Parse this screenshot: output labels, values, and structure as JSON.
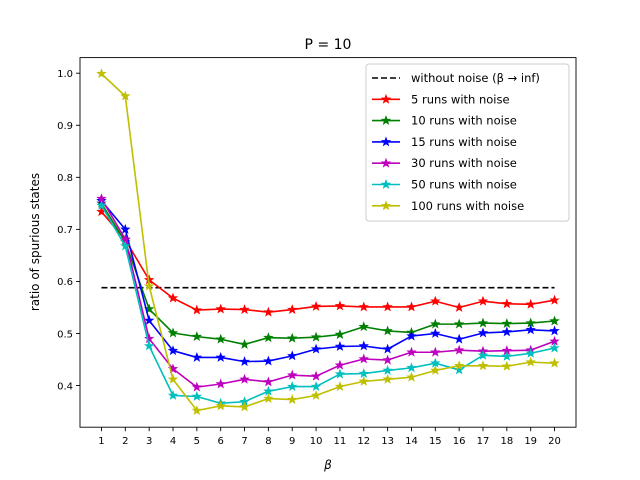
{
  "chart_data": {
    "type": "line",
    "title": "P = 10",
    "xlabel": "β",
    "ylabel": "ratio of spurious states",
    "x": [
      1,
      2,
      3,
      4,
      5,
      6,
      7,
      8,
      9,
      10,
      11,
      12,
      13,
      14,
      15,
      16,
      17,
      18,
      19,
      20
    ],
    "xlim": [
      0.1,
      20.9
    ],
    "ylim": [
      0.32,
      1.03
    ],
    "yticks": [
      "0.4",
      "0.5",
      "0.6",
      "0.7",
      "0.8",
      "0.9",
      "1.0"
    ],
    "grid": false,
    "legend_position": "upper right",
    "reference_line": {
      "name": "without noise (β → inf)",
      "y": 0.588,
      "x_range": [
        1,
        20
      ],
      "color": "#000000",
      "style": "dashed"
    },
    "series": [
      {
        "name": "5 runs with noise",
        "color": "#ff0000",
        "values": [
          0.734,
          0.68,
          0.603,
          0.568,
          0.545,
          0.547,
          0.546,
          0.541,
          0.546,
          0.552,
          0.553,
          0.551,
          0.551,
          0.551,
          0.562,
          0.55,
          0.562,
          0.557,
          0.556,
          0.564
        ]
      },
      {
        "name": "10 runs with noise",
        "color": "#008000",
        "values": [
          0.75,
          0.676,
          0.547,
          0.501,
          0.494,
          0.489,
          0.479,
          0.492,
          0.491,
          0.493,
          0.498,
          0.513,
          0.505,
          0.502,
          0.518,
          0.518,
          0.52,
          0.519,
          0.52,
          0.524
        ]
      },
      {
        "name": "15 runs with noise",
        "color": "#0000ff",
        "values": [
          0.755,
          0.7,
          0.525,
          0.467,
          0.454,
          0.454,
          0.446,
          0.447,
          0.457,
          0.47,
          0.475,
          0.476,
          0.47,
          0.495,
          0.5,
          0.489,
          0.501,
          0.503,
          0.507,
          0.505
        ]
      },
      {
        "name": "30 runs with noise",
        "color": "#bf00bf",
        "values": [
          0.759,
          0.681,
          0.49,
          0.432,
          0.397,
          0.403,
          0.412,
          0.407,
          0.42,
          0.418,
          0.439,
          0.451,
          0.449,
          0.464,
          0.464,
          0.468,
          0.466,
          0.467,
          0.468,
          0.485
        ]
      },
      {
        "name": "50 runs with noise",
        "color": "#00bfbf",
        "values": [
          0.746,
          0.668,
          0.476,
          0.381,
          0.379,
          0.366,
          0.369,
          0.389,
          0.398,
          0.398,
          0.422,
          0.423,
          0.429,
          0.434,
          0.443,
          0.43,
          0.458,
          0.456,
          0.462,
          0.472
        ]
      },
      {
        "name": "100 runs with noise",
        "color": "#bfbf00",
        "values": [
          0.999,
          0.956,
          0.591,
          0.412,
          0.352,
          0.361,
          0.359,
          0.375,
          0.373,
          0.381,
          0.398,
          0.408,
          0.412,
          0.416,
          0.429,
          0.438,
          0.438,
          0.437,
          0.445,
          0.443
        ]
      }
    ]
  }
}
